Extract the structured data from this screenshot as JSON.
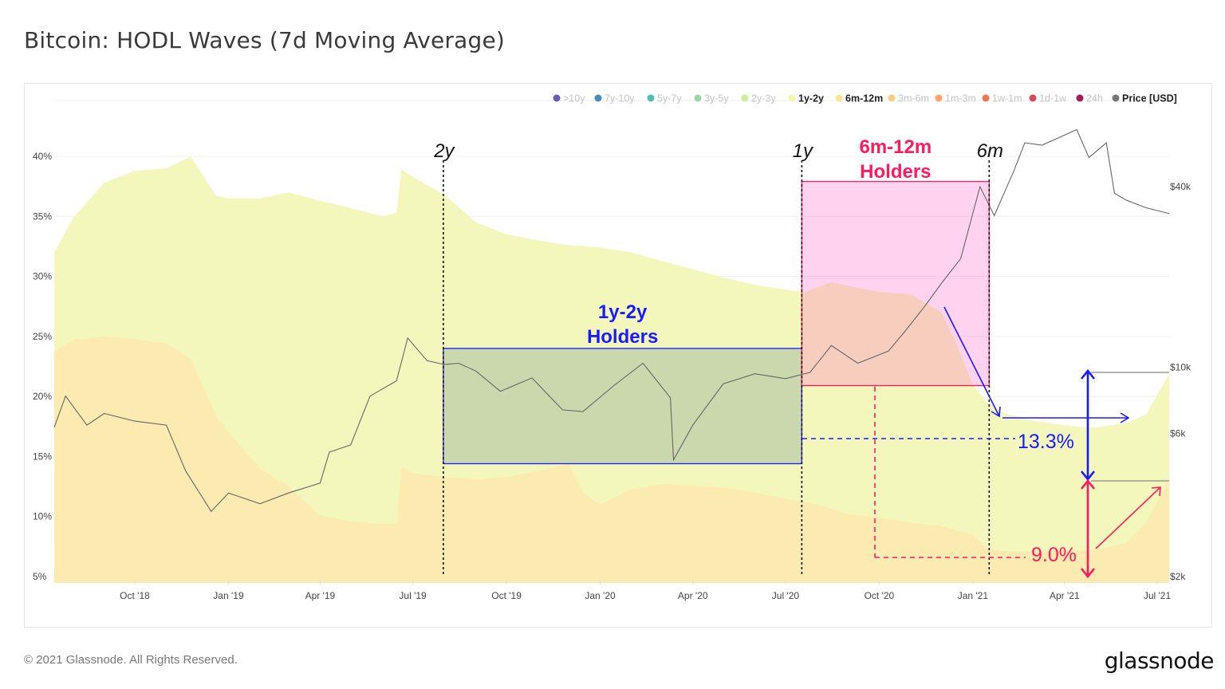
{
  "title": "Bitcoin: HODL Waves (7d Moving Average)",
  "footer": "© 2021 Glassnode. All Rights Reserved.",
  "logo": "glassnode",
  "watermark": "glassnode",
  "chart_data": {
    "type": "area",
    "stacking": "cumulative (top boundary values as read on left axis)",
    "title": "Bitcoin: HODL Waves (7d Moving Average)",
    "ylim": [
      5,
      42
    ],
    "y_ticks": [
      "5%",
      "10%",
      "15%",
      "20%",
      "25%",
      "30%",
      "35%",
      "40%"
    ],
    "y_tick_values": [
      5,
      10,
      15,
      20,
      25,
      30,
      35,
      40
    ],
    "y2_scale": "log",
    "y2_ticks": [
      "$2k",
      "$6k",
      "$10k",
      "$40k"
    ],
    "y2_tick_values": [
      2000,
      6000,
      10000,
      40000
    ],
    "xlim": [
      "2018-07-14",
      "2021-07-13"
    ],
    "x_ticks": [
      "Oct '18",
      "Jan '19",
      "Apr '19",
      "Jul '19",
      "Oct '19",
      "Jan '20",
      "Apr '20",
      "Jul '20",
      "Oct '20",
      "Jan '21",
      "Apr '21",
      "Jul '21"
    ],
    "x_tick_dates": [
      "2018-10-01",
      "2019-01-01",
      "2019-04-01",
      "2019-07-01",
      "2019-10-01",
      "2020-01-01",
      "2020-04-01",
      "2020-07-01",
      "2020-10-01",
      "2021-01-01",
      "2021-04-01",
      "2021-07-01"
    ],
    "grid": true,
    "legend_position": "top-right",
    "legend": [
      {
        "name": ">10y",
        "color": "#5b4aa8",
        "active": false
      },
      {
        "name": "7y-10y",
        "color": "#2f7fc1",
        "active": false
      },
      {
        "name": "5y-7y",
        "color": "#3cb7a6",
        "active": false
      },
      {
        "name": "3y-5y",
        "color": "#8fd19e",
        "active": false
      },
      {
        "name": "2y-3y",
        "color": "#c9ea8f",
        "active": false
      },
      {
        "name": "1y-2y",
        "color": "#f3f7a8",
        "active": true
      },
      {
        "name": "6m-12m",
        "color": "#fde68a",
        "active": true
      },
      {
        "name": "3m-6m",
        "color": "#fdc76b",
        "active": false
      },
      {
        "name": "1m-3m",
        "color": "#f9995a",
        "active": false
      },
      {
        "name": "1w-1m",
        "color": "#f0643f",
        "active": false
      },
      {
        "name": "1d-1w",
        "color": "#d8334a",
        "active": false
      },
      {
        "name": "24h",
        "color": "#9e0142",
        "active": false
      },
      {
        "name": "Price [USD]",
        "color": "#777777",
        "active": true
      }
    ],
    "series": [
      {
        "name": "1y-2y",
        "color": "#f4f7bc",
        "points": [
          [
            "2018-07-14",
            32.0
          ],
          [
            "2018-08-01",
            34.8
          ],
          [
            "2018-09-01",
            37.8
          ],
          [
            "2018-10-01",
            38.8
          ],
          [
            "2018-11-01",
            39.0
          ],
          [
            "2018-11-25",
            40.0
          ],
          [
            "2018-12-20",
            36.7
          ],
          [
            "2019-01-01",
            36.5
          ],
          [
            "2019-02-01",
            36.5
          ],
          [
            "2019-03-01",
            37.0
          ],
          [
            "2019-04-01",
            36.3
          ],
          [
            "2019-05-01",
            35.7
          ],
          [
            "2019-06-01",
            35.0
          ],
          [
            "2019-06-15",
            35.3
          ],
          [
            "2019-06-20",
            38.9
          ],
          [
            "2019-07-01",
            38.3
          ],
          [
            "2019-08-01",
            36.8
          ],
          [
            "2019-09-01",
            34.5
          ],
          [
            "2019-10-01",
            33.5
          ],
          [
            "2019-11-01",
            33.0
          ],
          [
            "2019-12-01",
            32.6
          ],
          [
            "2020-01-01",
            32.4
          ],
          [
            "2020-02-01",
            32.0
          ],
          [
            "2020-03-01",
            31.3
          ],
          [
            "2020-04-01",
            30.6
          ],
          [
            "2020-05-01",
            29.9
          ],
          [
            "2020-06-01",
            29.3
          ],
          [
            "2020-07-01",
            28.9
          ],
          [
            "2020-07-20",
            28.7
          ],
          [
            "2020-08-15",
            29.5
          ],
          [
            "2020-09-01",
            29.2
          ],
          [
            "2020-10-01",
            28.7
          ],
          [
            "2020-11-01",
            28.5
          ],
          [
            "2020-12-01",
            27.0
          ],
          [
            "2020-12-15",
            24.5
          ],
          [
            "2021-01-01",
            21.0
          ],
          [
            "2021-01-15",
            19.5
          ],
          [
            "2021-02-01",
            18.6
          ],
          [
            "2021-03-01",
            18.0
          ],
          [
            "2021-04-01",
            17.6
          ],
          [
            "2021-05-01",
            17.4
          ],
          [
            "2021-06-01",
            17.8
          ],
          [
            "2021-06-20",
            18.5
          ],
          [
            "2021-07-13",
            21.9
          ]
        ]
      },
      {
        "name": "6m-12m",
        "color": "#fcebb0",
        "points": [
          [
            "2018-07-14",
            23.7
          ],
          [
            "2018-08-01",
            24.7
          ],
          [
            "2018-09-01",
            25.0
          ],
          [
            "2018-10-01",
            24.8
          ],
          [
            "2018-11-01",
            24.4
          ],
          [
            "2018-11-25",
            23.1
          ],
          [
            "2018-12-20",
            18.4
          ],
          [
            "2019-01-01",
            17.0
          ],
          [
            "2019-02-01",
            14.0
          ],
          [
            "2019-03-01",
            12.5
          ],
          [
            "2019-04-01",
            10.1
          ],
          [
            "2019-05-01",
            9.6
          ],
          [
            "2019-06-01",
            9.4
          ],
          [
            "2019-06-15",
            9.4
          ],
          [
            "2019-06-20",
            14.1
          ],
          [
            "2019-07-01",
            13.6
          ],
          [
            "2019-08-01",
            13.3
          ],
          [
            "2019-09-01",
            13.1
          ],
          [
            "2019-10-01",
            13.3
          ],
          [
            "2019-11-01",
            13.8
          ],
          [
            "2019-12-01",
            14.4
          ],
          [
            "2019-12-15",
            12.0
          ],
          [
            "2020-01-01",
            11.0
          ],
          [
            "2020-02-01",
            12.3
          ],
          [
            "2020-03-01",
            12.7
          ],
          [
            "2020-04-01",
            12.6
          ],
          [
            "2020-05-01",
            12.4
          ],
          [
            "2020-06-01",
            12.0
          ],
          [
            "2020-07-01",
            11.5
          ],
          [
            "2020-08-01",
            11.0
          ],
          [
            "2020-09-01",
            10.2
          ],
          [
            "2020-10-01",
            9.9
          ],
          [
            "2020-11-01",
            9.5
          ],
          [
            "2020-12-01",
            9.2
          ],
          [
            "2021-01-01",
            8.5
          ],
          [
            "2021-01-15",
            7.3
          ],
          [
            "2021-02-01",
            7.1
          ],
          [
            "2021-03-01",
            7.1
          ],
          [
            "2021-04-01",
            7.2
          ],
          [
            "2021-05-01",
            7.2
          ],
          [
            "2021-06-01",
            7.8
          ],
          [
            "2021-06-20",
            9.5
          ],
          [
            "2021-07-13",
            13.1
          ]
        ]
      },
      {
        "name": "Price [USD]",
        "axis": "right",
        "color": "#666666",
        "points": [
          [
            "2018-07-14",
            6300
          ],
          [
            "2018-07-25",
            8000
          ],
          [
            "2018-08-15",
            6400
          ],
          [
            "2018-09-01",
            7000
          ],
          [
            "2018-10-01",
            6600
          ],
          [
            "2018-11-01",
            6400
          ],
          [
            "2018-11-20",
            4500
          ],
          [
            "2018-12-15",
            3300
          ],
          [
            "2019-01-01",
            3800
          ],
          [
            "2019-02-01",
            3500
          ],
          [
            "2019-03-01",
            3800
          ],
          [
            "2019-04-01",
            4100
          ],
          [
            "2019-04-10",
            5200
          ],
          [
            "2019-05-01",
            5500
          ],
          [
            "2019-05-20",
            8000
          ],
          [
            "2019-06-15",
            9000
          ],
          [
            "2019-06-26",
            12500
          ],
          [
            "2019-07-15",
            10500
          ],
          [
            "2019-08-01",
            10200
          ],
          [
            "2019-08-15",
            10300
          ],
          [
            "2019-09-01",
            9700
          ],
          [
            "2019-09-25",
            8300
          ],
          [
            "2019-10-26",
            9200
          ],
          [
            "2019-11-25",
            7200
          ],
          [
            "2019-12-15",
            7100
          ],
          [
            "2020-01-15",
            8700
          ],
          [
            "2020-02-12",
            10300
          ],
          [
            "2020-03-10",
            7900
          ],
          [
            "2020-03-13",
            4900
          ],
          [
            "2020-04-01",
            6400
          ],
          [
            "2020-05-01",
            8800
          ],
          [
            "2020-06-01",
            9500
          ],
          [
            "2020-07-01",
            9150
          ],
          [
            "2020-07-25",
            9600
          ],
          [
            "2020-08-15",
            11800
          ],
          [
            "2020-09-10",
            10300
          ],
          [
            "2020-10-10",
            11300
          ],
          [
            "2020-10-25",
            13000
          ],
          [
            "2020-11-15",
            16000
          ],
          [
            "2020-12-01",
            19000
          ],
          [
            "2020-12-20",
            23000
          ],
          [
            "2021-01-08",
            40000
          ],
          [
            "2021-01-22",
            32000
          ],
          [
            "2021-02-10",
            45000
          ],
          [
            "2021-02-21",
            56000
          ],
          [
            "2021-03-10",
            55000
          ],
          [
            "2021-04-13",
            62000
          ],
          [
            "2021-04-25",
            50000
          ],
          [
            "2021-05-12",
            56000
          ],
          [
            "2021-05-20",
            38000
          ],
          [
            "2021-06-01",
            36000
          ],
          [
            "2021-06-20",
            34000
          ],
          [
            "2021-07-13",
            32500
          ]
        ]
      }
    ],
    "annotations": {
      "vlines": [
        {
          "label": "2y",
          "date": "2019-07-31"
        },
        {
          "label": "1y",
          "date": "2020-07-17"
        },
        {
          "label": "6m",
          "date": "2021-01-17"
        }
      ],
      "boxes": [
        {
          "label_line1": "1y-2y",
          "label_line2": "Holders",
          "x": [
            "2019-07-31",
            "2020-07-17"
          ],
          "y": [
            14.4,
            24.0
          ],
          "color": "#1a1aff"
        },
        {
          "label_line1": "6m-12m",
          "label_line2": "Holders",
          "x": [
            "2020-07-17",
            "2021-01-17"
          ],
          "y": [
            20.9,
            37.9
          ],
          "color": "#ff1a5e"
        }
      ],
      "values": [
        {
          "label": "13.3%",
          "color": "#1a1aff"
        },
        {
          "label": "9.0%",
          "color": "#ff1a5e"
        }
      ]
    }
  }
}
